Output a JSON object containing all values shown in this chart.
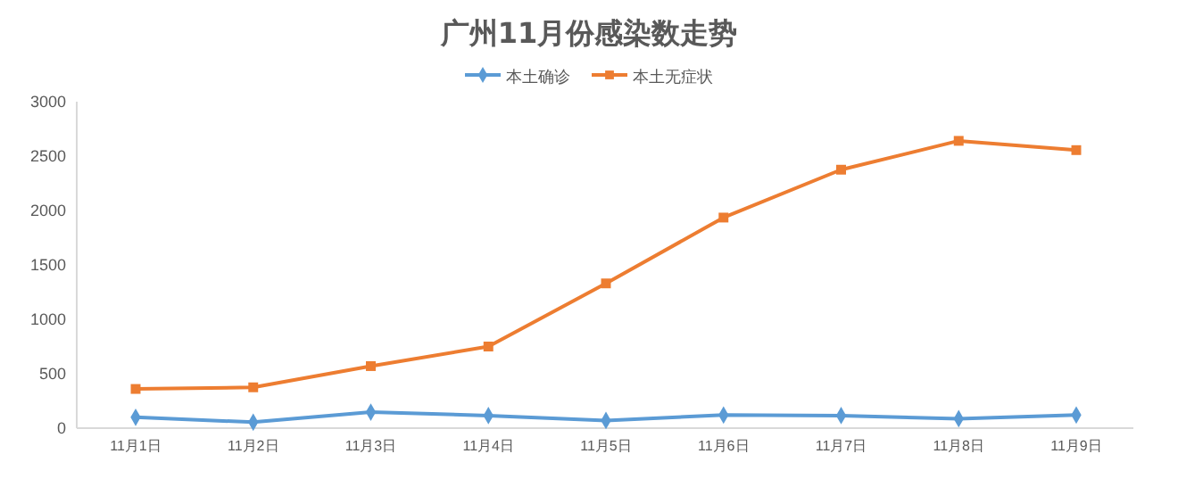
{
  "chart_data": {
    "type": "line",
    "title": "广州11月份感染数走势",
    "categories": [
      "11月1日",
      "11月2日",
      "11月3日",
      "11月4日",
      "11月5日",
      "11月6日",
      "11月7日",
      "11月8日",
      "11月9日"
    ],
    "series": [
      {
        "name": "本土确诊",
        "color": "#5b9bd5",
        "marker": "diamond",
        "values": [
          100,
          55,
          147,
          115,
          70,
          120,
          115,
          87,
          120
        ]
      },
      {
        "name": "本土无症状",
        "color": "#ed7d31",
        "marker": "square",
        "values": [
          360,
          375,
          570,
          750,
          1330,
          1935,
          2375,
          2640,
          2555
        ]
      }
    ],
    "ylim": [
      0,
      3000
    ],
    "yticks": [
      0,
      500,
      1000,
      1500,
      2000,
      2500,
      3000
    ],
    "grid": false,
    "legend": "top",
    "line_style": "solid"
  }
}
